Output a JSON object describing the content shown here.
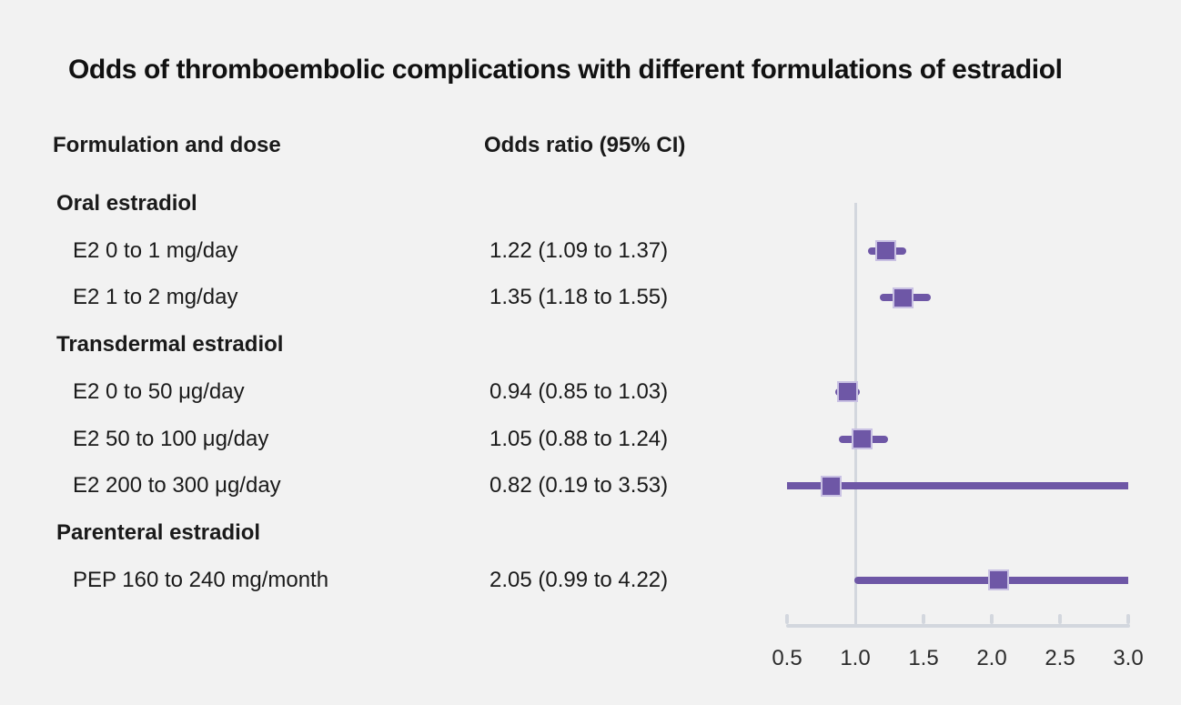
{
  "chart_data": {
    "type": "forest",
    "title": "Odds of thromboembolic complications with different formulations of estradiol",
    "columns": {
      "formulation": "Formulation and dose",
      "odds_ratio": "Odds ratio (95% CI)"
    },
    "x_axis": {
      "min": 0.5,
      "max": 3.0,
      "ticks": [
        0.5,
        1.0,
        1.5,
        2.0,
        2.5,
        3.0
      ],
      "tick_labels": [
        "0.5",
        "1.0",
        "1.5",
        "2.0",
        "2.5",
        "3.0"
      ],
      "reference_line": 1.0,
      "grid": false
    },
    "groups": [
      {
        "label": "Oral estradiol",
        "items": [
          {
            "label": "E2 0 to 1 mg/day",
            "text": "1.22 (1.09 to 1.37)",
            "or": 1.22,
            "ci_low": 1.09,
            "ci_high": 1.37
          },
          {
            "label": "E2 1 to 2 mg/day",
            "text": "1.35 (1.18 to 1.55)",
            "or": 1.35,
            "ci_low": 1.18,
            "ci_high": 1.55
          }
        ]
      },
      {
        "label": "Transdermal estradiol",
        "items": [
          {
            "label": "E2 0 to 50 μg/day",
            "text": "0.94 (0.85 to 1.03)",
            "or": 0.94,
            "ci_low": 0.85,
            "ci_high": 1.03
          },
          {
            "label": "E2 50 to 100 μg/day",
            "text": "1.05 (0.88 to 1.24)",
            "or": 1.05,
            "ci_low": 0.88,
            "ci_high": 1.24
          },
          {
            "label": "E2 200 to 300 μg/day",
            "text": "0.82 (0.19 to 3.53)",
            "or": 0.82,
            "ci_low": 0.19,
            "ci_high": 3.53
          }
        ]
      },
      {
        "label": "Parenteral estradiol",
        "items": [
          {
            "label": "PEP 160 to 240 mg/month",
            "text": "2.05 (0.99 to 4.22)",
            "or": 2.05,
            "ci_low": 0.99,
            "ci_high": 4.22
          }
        ]
      }
    ],
    "colors": {
      "background": "#f2f2f2",
      "text": "#1a1a1a",
      "marker": "#6e57a6",
      "marker_border": "#c9c1e3",
      "axis": "#d3d7de"
    }
  }
}
